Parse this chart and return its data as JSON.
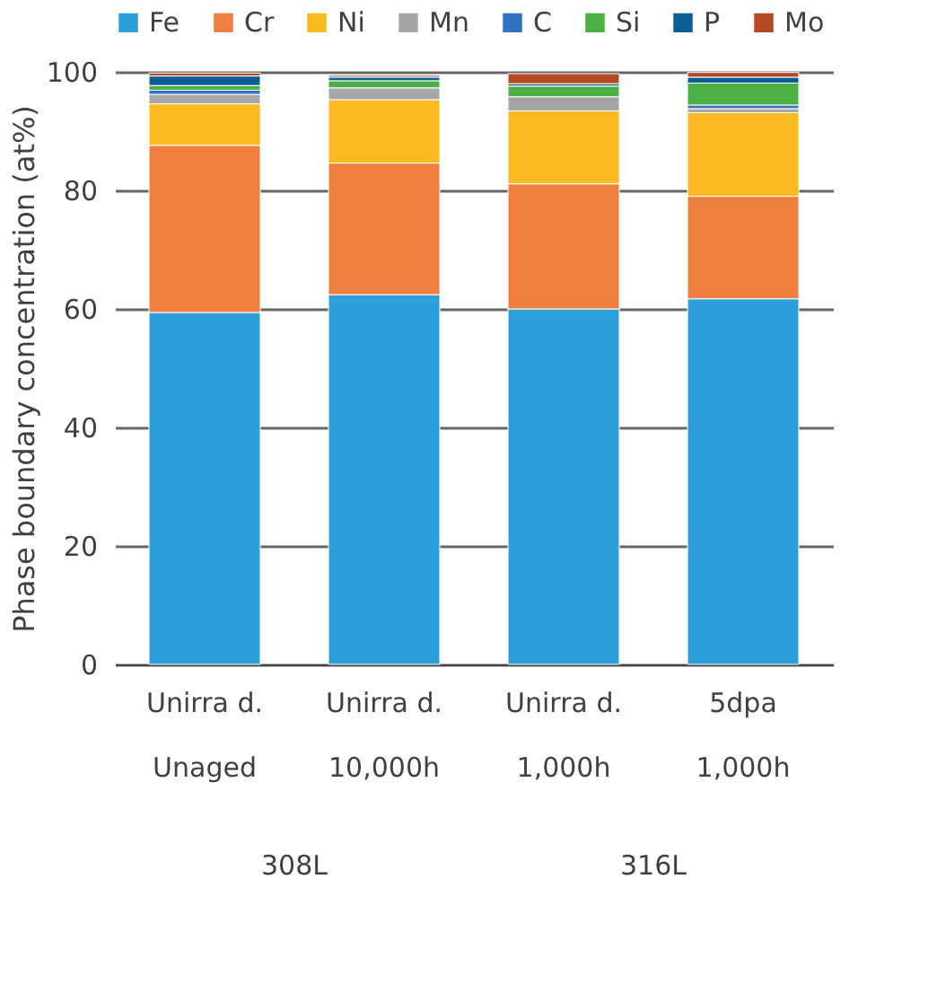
{
  "chart_data": {
    "type": "bar",
    "stacked": true,
    "ylabel": "Phase boundary concentration (at%)",
    "categories": [
      "Unirra d.\nUnaged",
      "Unirra d.\n10,000h",
      "Unirra d.\n1,000h",
      "5dpa\n1,000h"
    ],
    "annotations": [
      "308L",
      "316L"
    ],
    "series": [
      {
        "name": "Fe",
        "color": "#2e9fd8",
        "values": [
          59.4,
          62.4,
          60.0,
          61.7
        ]
      },
      {
        "name": "Cr",
        "color": "#ef7e3f",
        "values": [
          28.2,
          22.2,
          21.1,
          17.3
        ]
      },
      {
        "name": "Ni",
        "color": "#f9bb1f",
        "values": [
          7.0,
          10.7,
          12.3,
          14.1
        ]
      },
      {
        "name": "Mn",
        "color": "#a6a6a6",
        "values": [
          1.6,
          2.0,
          2.4,
          0.7
        ]
      },
      {
        "name": "C",
        "color": "#2f72c0",
        "values": [
          0.7,
          null,
          null,
          0.6
        ]
      },
      {
        "name": "Si",
        "color": "#4bb043",
        "values": [
          0.8,
          1.2,
          1.8,
          3.7
        ]
      },
      {
        "name": "P",
        "color": "#0b5f95",
        "values": [
          1.6,
          0.6,
          0.4,
          1.0
        ]
      },
      {
        "name": "Mo",
        "color": "#b54a22",
        "values": [
          0.5,
          0.3,
          1.7,
          0.8
        ]
      }
    ],
    "ylim": [
      0,
      100
    ],
    "yticks": [
      0,
      20,
      40,
      60,
      80,
      100
    ],
    "grid": "y",
    "legend": "top"
  }
}
